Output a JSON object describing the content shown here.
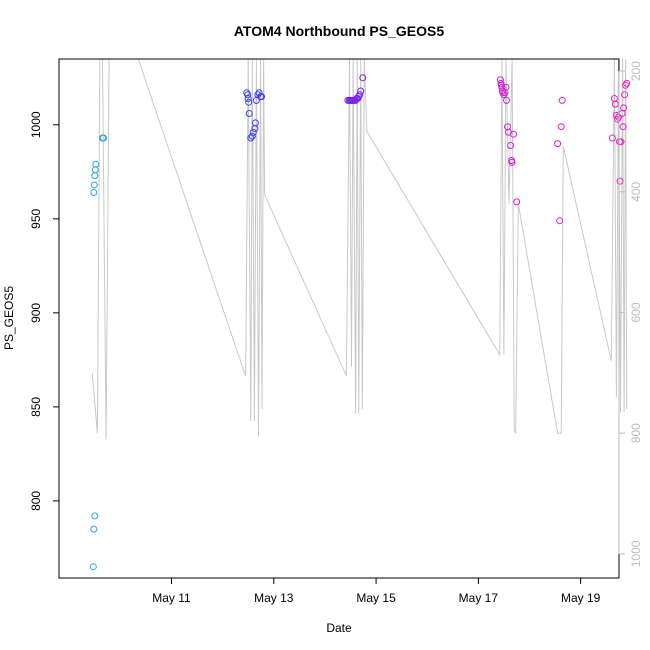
{
  "chart_data": {
    "type": "scatter",
    "title": "ATOM4 Northbound PS_GEOS5",
    "xlabel": "Date",
    "ylabel": "PS_GEOS5",
    "xlim_day": [
      8.8,
      19.75
    ],
    "ylim": [
      759,
      1035
    ],
    "y2lim": [
      1040,
      180
    ],
    "x_ticks": [
      {
        "day": 11,
        "label": "May 11"
      },
      {
        "day": 13,
        "label": "May 13"
      },
      {
        "day": 15,
        "label": "May 15"
      },
      {
        "day": 17,
        "label": "May 17"
      },
      {
        "day": 19,
        "label": "May 19"
      }
    ],
    "y_ticks": [
      800,
      850,
      900,
      950,
      1000
    ],
    "y2_ticks": [
      200,
      400,
      600,
      800,
      1000
    ],
    "colors": {
      "line": "#c8c8c8",
      "axis": "#000000",
      "right_axis": "#bdbdbd",
      "sequence": [
        "#29a8f0",
        "#1f63f0",
        "#5c21f0",
        "#9c22e8",
        "#d820d0",
        "#f020c0"
      ]
    },
    "points": [
      {
        "day": 9.47,
        "v": 765
      },
      {
        "day": 9.48,
        "v": 785
      },
      {
        "day": 9.5,
        "v": 792
      },
      {
        "day": 9.48,
        "v": 964
      },
      {
        "day": 9.49,
        "v": 968
      },
      {
        "day": 9.5,
        "v": 973
      },
      {
        "day": 9.51,
        "v": 976
      },
      {
        "day": 9.52,
        "v": 979
      },
      {
        "day": 9.65,
        "v": 993
      },
      {
        "day": 9.67,
        "v": 993
      },
      {
        "day": 12.47,
        "v": 1017
      },
      {
        "day": 12.49,
        "v": 1016
      },
      {
        "day": 12.5,
        "v": 1014
      },
      {
        "day": 12.51,
        "v": 1012
      },
      {
        "day": 12.52,
        "v": 1006
      },
      {
        "day": 12.55,
        "v": 993
      },
      {
        "day": 12.58,
        "v": 994
      },
      {
        "day": 12.6,
        "v": 996
      },
      {
        "day": 12.63,
        "v": 998
      },
      {
        "day": 12.64,
        "v": 1001
      },
      {
        "day": 12.66,
        "v": 1013
      },
      {
        "day": 12.69,
        "v": 1016
      },
      {
        "day": 12.71,
        "v": 1017
      },
      {
        "day": 12.74,
        "v": 1015
      },
      {
        "day": 12.76,
        "v": 1015
      },
      {
        "day": 14.45,
        "v": 1013
      },
      {
        "day": 14.48,
        "v": 1013
      },
      {
        "day": 14.5,
        "v": 1013
      },
      {
        "day": 14.52,
        "v": 1013
      },
      {
        "day": 14.54,
        "v": 1013
      },
      {
        "day": 14.56,
        "v": 1013
      },
      {
        "day": 14.58,
        "v": 1013
      },
      {
        "day": 14.6,
        "v": 1013
      },
      {
        "day": 14.62,
        "v": 1014
      },
      {
        "day": 14.64,
        "v": 1014
      },
      {
        "day": 14.66,
        "v": 1015
      },
      {
        "day": 14.68,
        "v": 1016
      },
      {
        "day": 14.7,
        "v": 1018
      },
      {
        "day": 14.74,
        "v": 1025
      },
      {
        "day": 17.43,
        "v": 1024
      },
      {
        "day": 17.44,
        "v": 1022
      },
      {
        "day": 17.45,
        "v": 1021
      },
      {
        "day": 17.46,
        "v": 1020
      },
      {
        "day": 17.47,
        "v": 1018
      },
      {
        "day": 17.48,
        "v": 1017
      },
      {
        "day": 17.5,
        "v": 1016
      },
      {
        "day": 17.52,
        "v": 1017
      },
      {
        "day": 17.54,
        "v": 1020
      },
      {
        "day": 17.55,
        "v": 1013
      },
      {
        "day": 17.57,
        "v": 999
      },
      {
        "day": 17.59,
        "v": 996
      },
      {
        "day": 17.63,
        "v": 989
      },
      {
        "day": 17.65,
        "v": 981
      },
      {
        "day": 17.66,
        "v": 980
      },
      {
        "day": 17.69,
        "v": 995
      },
      {
        "day": 17.75,
        "v": 959
      },
      {
        "day": 18.55,
        "v": 990
      },
      {
        "day": 18.59,
        "v": 949
      },
      {
        "day": 18.62,
        "v": 999
      },
      {
        "day": 18.64,
        "v": 1013
      },
      {
        "day": 19.62,
        "v": 993
      },
      {
        "day": 19.66,
        "v": 1014
      },
      {
        "day": 19.68,
        "v": 1011
      },
      {
        "day": 19.7,
        "v": 1005
      },
      {
        "day": 19.72,
        "v": 1003
      },
      {
        "day": 19.74,
        "v": 1004
      },
      {
        "day": 19.76,
        "v": 991
      },
      {
        "day": 19.77,
        "v": 970
      },
      {
        "day": 19.79,
        "v": 991
      },
      {
        "day": 19.81,
        "v": 1006
      },
      {
        "day": 19.83,
        "v": 999
      },
      {
        "day": 19.84,
        "v": 1009
      },
      {
        "day": 19.86,
        "v": 1016
      },
      {
        "day": 19.88,
        "v": 1021
      },
      {
        "day": 19.9,
        "v": 1022
      }
    ],
    "altitude_line": [
      {
        "day": 9.45,
        "a": 700
      },
      {
        "day": 9.55,
        "a": 800
      },
      {
        "day": 9.6,
        "a": 160
      },
      {
        "day": 9.65,
        "a": 160
      },
      {
        "day": 9.72,
        "a": 810
      },
      {
        "day": 9.78,
        "a": 160
      },
      {
        "day": 10.35,
        "a": 160
      },
      {
        "day": 12.45,
        "a": 706
      },
      {
        "day": 12.5,
        "a": 160
      },
      {
        "day": 12.55,
        "a": 780
      },
      {
        "day": 12.58,
        "a": 160
      },
      {
        "day": 12.62,
        "a": 780
      },
      {
        "day": 12.66,
        "a": 160
      },
      {
        "day": 12.7,
        "a": 805
      },
      {
        "day": 12.74,
        "a": 160
      },
      {
        "day": 12.77,
        "a": 760
      },
      {
        "day": 12.8,
        "a": 160
      },
      {
        "day": 12.82,
        "a": 405
      },
      {
        "day": 14.42,
        "a": 705
      },
      {
        "day": 14.48,
        "a": 160
      },
      {
        "day": 14.52,
        "a": 690
      },
      {
        "day": 14.55,
        "a": 160
      },
      {
        "day": 14.6,
        "a": 768
      },
      {
        "day": 14.63,
        "a": 160
      },
      {
        "day": 14.66,
        "a": 768
      },
      {
        "day": 14.7,
        "a": 160
      },
      {
        "day": 14.73,
        "a": 760
      },
      {
        "day": 14.77,
        "a": 160
      },
      {
        "day": 14.82,
        "a": 300
      },
      {
        "day": 17.42,
        "a": 670
      },
      {
        "day": 17.46,
        "a": 160
      },
      {
        "day": 17.5,
        "a": 670
      },
      {
        "day": 17.54,
        "a": 160
      },
      {
        "day": 17.6,
        "a": 420
      },
      {
        "day": 17.66,
        "a": 160
      },
      {
        "day": 17.7,
        "a": 795
      },
      {
        "day": 17.73,
        "a": 800
      },
      {
        "day": 17.78,
        "a": 420
      },
      {
        "day": 18.55,
        "a": 800
      },
      {
        "day": 18.62,
        "a": 800
      },
      {
        "day": 18.66,
        "a": 325
      },
      {
        "day": 19.6,
        "a": 680
      },
      {
        "day": 19.66,
        "a": 160
      },
      {
        "day": 19.7,
        "a": 740
      },
      {
        "day": 19.74,
        "a": 160
      },
      {
        "day": 19.78,
        "a": 765
      },
      {
        "day": 19.82,
        "a": 160
      },
      {
        "day": 19.85,
        "a": 765
      },
      {
        "day": 19.88,
        "a": 160
      },
      {
        "day": 19.9,
        "a": 760
      }
    ]
  }
}
